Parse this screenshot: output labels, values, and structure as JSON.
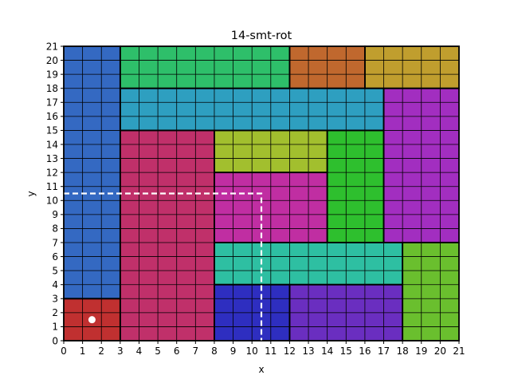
{
  "chart_data": {
    "type": "rectangle-packing",
    "title": "14-smt-rot",
    "xlabel": "x",
    "ylabel": "y",
    "xlim": [
      0,
      21
    ],
    "ylim": [
      0,
      21
    ],
    "xticks": [
      0,
      1,
      2,
      3,
      4,
      5,
      6,
      7,
      8,
      9,
      10,
      11,
      12,
      13,
      14,
      15,
      16,
      17,
      18,
      19,
      20,
      21
    ],
    "yticks": [
      0,
      1,
      2,
      3,
      4,
      5,
      6,
      7,
      8,
      9,
      10,
      11,
      12,
      13,
      14,
      15,
      16,
      17,
      18,
      19,
      20,
      21
    ],
    "grid": true,
    "rectangles": [
      {
        "x": 0,
        "y": 0,
        "w": 3,
        "h": 3,
        "color": "#c03030"
      },
      {
        "x": 0,
        "y": 3,
        "w": 3,
        "h": 18,
        "color": "#3469c2"
      },
      {
        "x": 3,
        "y": 0,
        "w": 5,
        "h": 15,
        "color": "#c0306a"
      },
      {
        "x": 3,
        "y": 15,
        "w": 14,
        "h": 3,
        "color": "#2e9fc0"
      },
      {
        "x": 3,
        "y": 18,
        "w": 9,
        "h": 3,
        "color": "#2ebf6a"
      },
      {
        "x": 12,
        "y": 18,
        "w": 4,
        "h": 3,
        "color": "#c0682e"
      },
      {
        "x": 16,
        "y": 18,
        "w": 5,
        "h": 3,
        "color": "#c09e2e"
      },
      {
        "x": 17,
        "y": 7,
        "w": 4,
        "h": 11,
        "color": "#a22ec0"
      },
      {
        "x": 8,
        "y": 12,
        "w": 6,
        "h": 3,
        "color": "#a2bf2e"
      },
      {
        "x": 14,
        "y": 7,
        "w": 3,
        "h": 8,
        "color": "#2ebf2e"
      },
      {
        "x": 8,
        "y": 7,
        "w": 6,
        "h": 5,
        "color": "#c02ea2"
      },
      {
        "x": 8,
        "y": 4,
        "w": 10,
        "h": 3,
        "color": "#2ebfa2"
      },
      {
        "x": 8,
        "y": 0,
        "w": 4,
        "h": 4,
        "color": "#2e2ec0"
      },
      {
        "x": 12,
        "y": 0,
        "w": 6,
        "h": 4,
        "color": "#6a2ec0"
      },
      {
        "x": 18,
        "y": 0,
        "w": 3,
        "h": 7,
        "color": "#6abf2e"
      }
    ],
    "marker": {
      "x": 1.5,
      "y": 1.5,
      "color": "#ffffff"
    },
    "dashed_line": {
      "points": [
        [
          0,
          10.5
        ],
        [
          10.5,
          10.5
        ],
        [
          10.5,
          0
        ]
      ],
      "color": "#ffffff"
    }
  }
}
